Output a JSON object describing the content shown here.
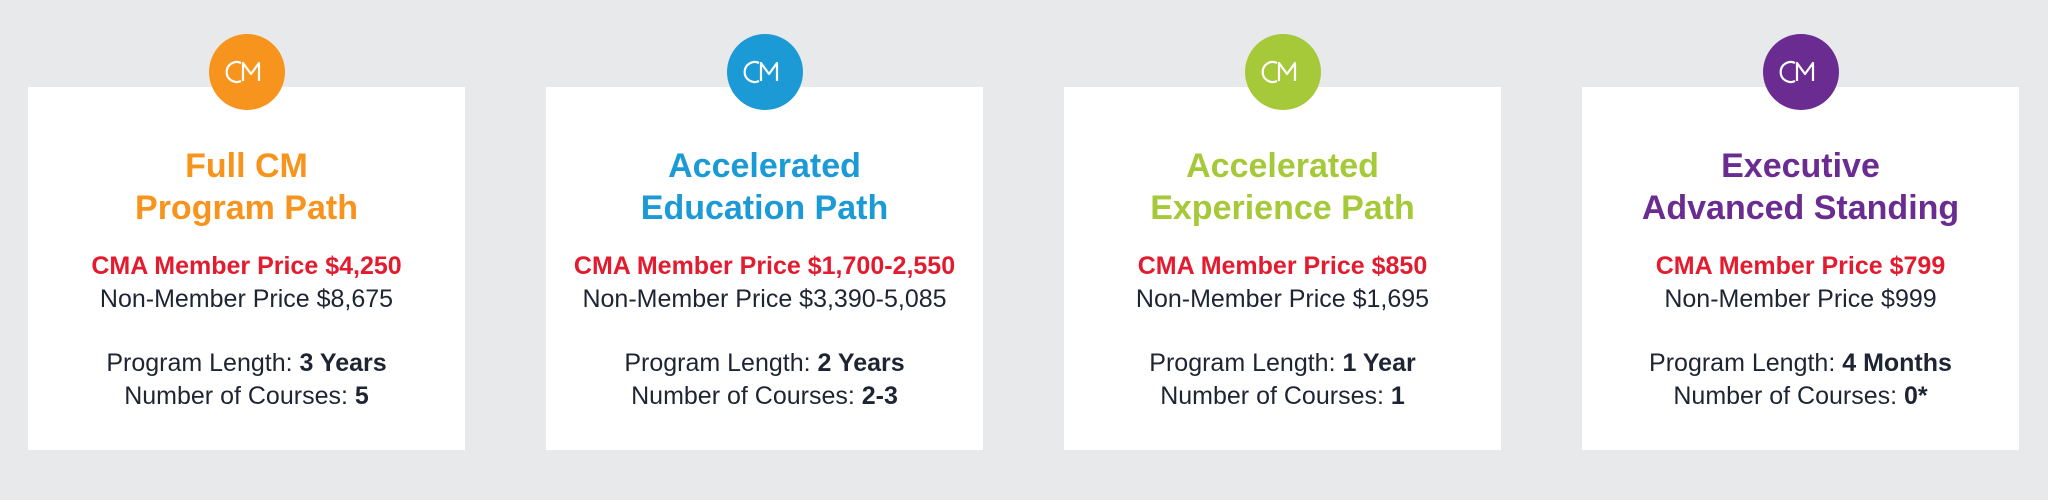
{
  "cards": [
    {
      "logo_icon": "cm-logo-icon",
      "badge_color": "#f7941d",
      "title_color": "#f7941d",
      "title": "Full CM\nProgram Path",
      "member_price": "CMA Member Price $4,250",
      "non_member_price": "Non-Member Price $8,675",
      "program_length_label": "Program Length: ",
      "program_length_value": "3 Years",
      "courses_label": "Number of Courses: ",
      "courses_value": "5"
    },
    {
      "logo_icon": "cm-logo-icon",
      "badge_color": "#1b9ad6",
      "title_color": "#1b9ad6",
      "title": "Accelerated\nEducation Path",
      "member_price": "CMA Member Price $1,700-2,550",
      "non_member_price": "Non-Member Price $3,390-5,085",
      "program_length_label": "Program Length: ",
      "program_length_value": "2 Years",
      "courses_label": "Number of Courses: ",
      "courses_value": "2-3"
    },
    {
      "logo_icon": "cm-logo-icon",
      "badge_color": "#a6c93a",
      "title_color": "#a6c93a",
      "title": "Accelerated\nExperience Path",
      "member_price": "CMA Member Price $850",
      "non_member_price": "Non-Member Price $1,695",
      "program_length_label": "Program Length: ",
      "program_length_value": "1 Year",
      "courses_label": "Number of Courses: ",
      "courses_value": "1"
    },
    {
      "logo_icon": "cm-logo-icon",
      "badge_color": "#6a2c91",
      "title_color": "#6a2c91",
      "title": "Executive\nAdvanced Standing",
      "member_price": "CMA Member Price $799",
      "non_member_price": "Non-Member Price $999",
      "program_length_label": "Program Length: ",
      "program_length_value": "4 Months",
      "courses_label": "Number of Courses: ",
      "courses_value": "0*"
    }
  ]
}
